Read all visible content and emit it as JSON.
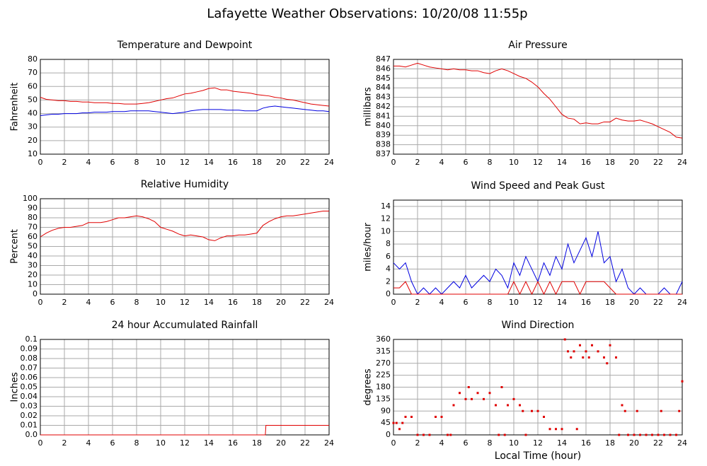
{
  "title": "Lafayette Weather Observations: 10/20/08 11:55p",
  "chart_data": [
    {
      "type": "line",
      "title": "Temperature and Dewpoint",
      "ylabel": "Fahrenheit",
      "grid": true,
      "xlim": [
        0,
        24
      ],
      "xticks": [
        0,
        2,
        4,
        6,
        8,
        10,
        12,
        14,
        16,
        18,
        20,
        22,
        24
      ],
      "ylim": [
        10,
        80
      ],
      "yticks": [
        10,
        20,
        30,
        40,
        50,
        60,
        70,
        80
      ],
      "x": [
        0,
        0.5,
        1,
        1.5,
        2,
        2.5,
        3,
        3.5,
        4,
        4.5,
        5,
        5.5,
        6,
        6.5,
        7,
        7.5,
        8,
        8.5,
        9,
        9.5,
        10,
        10.5,
        11,
        11.5,
        12,
        12.5,
        13,
        13.5,
        14,
        14.5,
        15,
        15.5,
        16,
        16.5,
        17,
        17.5,
        18,
        18.5,
        19,
        19.5,
        20,
        20.5,
        21,
        21.5,
        22,
        22.5,
        23,
        23.5,
        24
      ],
      "series": [
        {
          "color": "#e00000",
          "values": [
            52,
            50.5,
            50,
            49.5,
            49.5,
            49,
            49,
            48.5,
            48.5,
            48,
            48,
            48,
            47.5,
            47.5,
            47,
            47,
            47,
            47.5,
            48,
            49,
            50,
            51,
            51.5,
            53,
            54.5,
            55,
            56,
            57,
            58.5,
            59,
            57.5,
            57.5,
            56.5,
            56,
            55.5,
            55,
            54,
            53.5,
            53,
            52,
            51.5,
            50.5,
            50,
            49,
            48,
            47,
            46.5,
            46,
            45.5
          ]
        },
        {
          "color": "#0000e0",
          "values": [
            38.5,
            39,
            39.5,
            39.5,
            40,
            40,
            40,
            40.5,
            40.5,
            41,
            41,
            41,
            41.5,
            41.5,
            41.5,
            42,
            42,
            42,
            42,
            41.5,
            41,
            40.5,
            40,
            40.5,
            41,
            42,
            42.5,
            43,
            43,
            43,
            43,
            42.5,
            42.5,
            42.5,
            42,
            42,
            42,
            44,
            45,
            45.5,
            45,
            44.5,
            44,
            43.5,
            43,
            42.5,
            42,
            42,
            41.5
          ]
        }
      ]
    },
    {
      "type": "line",
      "title": "Air Pressure",
      "ylabel": "millibars",
      "grid": true,
      "xlim": [
        0,
        24
      ],
      "xticks": [
        0,
        2,
        4,
        6,
        8,
        10,
        12,
        14,
        16,
        18,
        20,
        22,
        24
      ],
      "ylim": [
        837,
        847
      ],
      "yticks": [
        837,
        838,
        839,
        840,
        841,
        842,
        843,
        844,
        845,
        846,
        847
      ],
      "x": [
        0,
        0.5,
        1,
        1.5,
        2,
        2.5,
        3,
        3.5,
        4,
        4.5,
        5,
        5.5,
        6,
        6.5,
        7,
        7.5,
        8,
        8.5,
        9,
        9.5,
        10,
        10.5,
        11,
        11.5,
        12,
        12.5,
        13,
        13.5,
        14,
        14.5,
        15,
        15.5,
        16,
        16.5,
        17,
        17.5,
        18,
        18.5,
        19,
        19.5,
        20,
        20.5,
        21,
        21.5,
        22,
        22.5,
        23,
        23.5,
        24
      ],
      "series": [
        {
          "color": "#e00000",
          "values": [
            846.3,
            846.3,
            846.2,
            846.4,
            846.6,
            846.4,
            846.2,
            846.1,
            846,
            845.9,
            846,
            845.9,
            845.9,
            845.8,
            845.8,
            845.6,
            845.5,
            845.8,
            846,
            845.8,
            845.5,
            845.2,
            845,
            844.6,
            844.1,
            843.4,
            842.8,
            842,
            841.2,
            840.8,
            840.7,
            840.2,
            840.3,
            840.2,
            840.2,
            840.4,
            840.4,
            840.8,
            840.6,
            840.5,
            840.5,
            840.6,
            840.4,
            840.2,
            839.9,
            839.6,
            839.3,
            838.8,
            838.7
          ]
        }
      ]
    },
    {
      "type": "line",
      "title": "Relative Humidity",
      "ylabel": "Percent",
      "grid": true,
      "xlim": [
        0,
        24
      ],
      "xticks": [
        0,
        2,
        4,
        6,
        8,
        10,
        12,
        14,
        16,
        18,
        20,
        22,
        24
      ],
      "ylim": [
        0,
        100
      ],
      "yticks": [
        0,
        10,
        20,
        30,
        40,
        50,
        60,
        70,
        80,
        90,
        100
      ],
      "x": [
        0,
        0.5,
        1,
        1.5,
        2,
        2.5,
        3,
        3.5,
        4,
        4.5,
        5,
        5.5,
        6,
        6.5,
        7,
        7.5,
        8,
        8.5,
        9,
        9.5,
        10,
        10.5,
        11,
        11.5,
        12,
        12.5,
        13,
        13.5,
        14,
        14.5,
        15,
        15.5,
        16,
        16.5,
        17,
        17.5,
        18,
        18.5,
        19,
        19.5,
        20,
        20.5,
        21,
        21.5,
        22,
        22.5,
        23,
        23.5,
        24
      ],
      "series": [
        {
          "color": "#e00000",
          "values": [
            60,
            64,
            67,
            69,
            70,
            70,
            71,
            72,
            75,
            75,
            75,
            76,
            78,
            80,
            80,
            81,
            82,
            81,
            79,
            76,
            70,
            68,
            66,
            63,
            61,
            62,
            61,
            60,
            57,
            56,
            59,
            61,
            61,
            62,
            62,
            63,
            64,
            72,
            76,
            79,
            81,
            82,
            82,
            83,
            84,
            85,
            86,
            87,
            87
          ]
        }
      ]
    },
    {
      "type": "line",
      "title": "Wind Speed and Peak Gust",
      "ylabel": "miles/hour",
      "grid": true,
      "xlim": [
        0,
        24
      ],
      "xticks": [
        0,
        2,
        4,
        6,
        8,
        10,
        12,
        14,
        16,
        18,
        20,
        22,
        24
      ],
      "ylim": [
        0,
        15
      ],
      "yticks": [
        0,
        2,
        4,
        6,
        8,
        10,
        12,
        14
      ],
      "x": [
        0,
        0.5,
        1,
        1.5,
        2,
        2.5,
        3,
        3.5,
        4,
        4.5,
        5,
        5.5,
        6,
        6.5,
        7,
        7.5,
        8,
        8.5,
        9,
        9.5,
        10,
        10.5,
        11,
        11.5,
        12,
        12.5,
        13,
        13.5,
        14,
        14.5,
        15,
        15.5,
        16,
        16.5,
        17,
        17.5,
        18,
        18.5,
        19,
        19.5,
        20,
        20.5,
        21,
        21.5,
        22,
        22.5,
        23,
        23.5,
        24
      ],
      "series": [
        {
          "color": "#0000e0",
          "values": [
            5,
            4,
            5,
            2,
            0,
            1,
            0,
            1,
            0,
            1,
            2,
            1,
            3,
            1,
            2,
            3,
            2,
            4,
            3,
            1,
            5,
            3,
            6,
            4,
            2,
            5,
            3,
            6,
            4,
            8,
            5,
            7,
            9,
            6,
            10,
            5,
            6,
            2,
            4,
            1,
            0,
            1,
            0,
            0,
            0,
            1,
            0,
            0,
            2
          ]
        },
        {
          "color": "#e00000",
          "values": [
            1,
            1,
            2,
            0,
            0,
            0,
            0,
            0,
            0,
            0,
            0,
            0,
            0,
            0,
            0,
            0,
            0,
            0,
            0,
            0,
            2,
            0,
            2,
            0,
            2,
            0,
            2,
            0,
            2,
            2,
            2,
            0,
            2,
            2,
            2,
            2,
            1,
            0,
            0,
            0,
            0,
            0,
            0,
            0,
            0,
            0,
            0,
            0,
            0
          ]
        }
      ]
    },
    {
      "type": "line",
      "title": "24 hour Accumulated Rainfall",
      "ylabel": "Inches",
      "grid": true,
      "xlim": [
        0,
        24
      ],
      "xticks": [
        0,
        2,
        4,
        6,
        8,
        10,
        12,
        14,
        16,
        18,
        20,
        22,
        24
      ],
      "ylim": [
        0,
        0.1
      ],
      "yticks": [
        {
          "value": 0,
          "label": "0.0"
        },
        0.01,
        0.02,
        0.03,
        0.04,
        0.05,
        0.06,
        0.07,
        0.08,
        0.09,
        0.1
      ],
      "x": [
        0,
        18.7,
        18.75,
        24
      ],
      "series": [
        {
          "color": "#e00000",
          "values": [
            0,
            0,
            0.01,
            0.01
          ]
        }
      ]
    },
    {
      "type": "scatter",
      "title": "Wind Direction",
      "ylabel": "degrees",
      "xlabel": "Local Time (hour)",
      "grid": true,
      "xlim": [
        0,
        24
      ],
      "xticks": [
        0,
        2,
        4,
        6,
        8,
        10,
        12,
        14,
        16,
        18,
        20,
        22,
        24
      ],
      "ylim": [
        0,
        360
      ],
      "yticks": [
        0,
        45,
        90,
        135,
        180,
        225,
        270,
        315,
        360
      ],
      "x": [
        0,
        0.25,
        0.5,
        0.75,
        1,
        1.5,
        2,
        2.5,
        3,
        3.5,
        4,
        4.5,
        4.75,
        5,
        5.5,
        6,
        6.25,
        6.5,
        7,
        7.5,
        8,
        8.5,
        8.75,
        9,
        9.25,
        9.5,
        10,
        10.5,
        10.75,
        11,
        11.5,
        12,
        12.5,
        13,
        13.5,
        14,
        14.25,
        14.5,
        14.75,
        15,
        15.25,
        15.5,
        15.75,
        16,
        16.25,
        16.5,
        17,
        17.5,
        17.75,
        18,
        18.5,
        18.75,
        19,
        19.25,
        19.5,
        20,
        20.25,
        20.5,
        21,
        21.5,
        22,
        22.25,
        22.5,
        23,
        23.5,
        23.75,
        24
      ],
      "series": [
        {
          "color": "#e00000",
          "values": [
            45,
            45,
            22,
            45,
            68,
            68,
            0,
            0,
            0,
            68,
            68,
            0,
            0,
            112,
            158,
            135,
            180,
            135,
            158,
            135,
            158,
            112,
            0,
            180,
            0,
            112,
            135,
            112,
            90,
            0,
            90,
            90,
            68,
            22,
            22,
            22,
            360,
            315,
            292,
            315,
            22,
            338,
            292,
            315,
            292,
            338,
            315,
            292,
            270,
            338,
            292,
            0,
            112,
            90,
            0,
            0,
            90,
            0,
            0,
            0,
            0,
            90,
            0,
            0,
            0,
            90,
            202
          ]
        }
      ]
    }
  ]
}
